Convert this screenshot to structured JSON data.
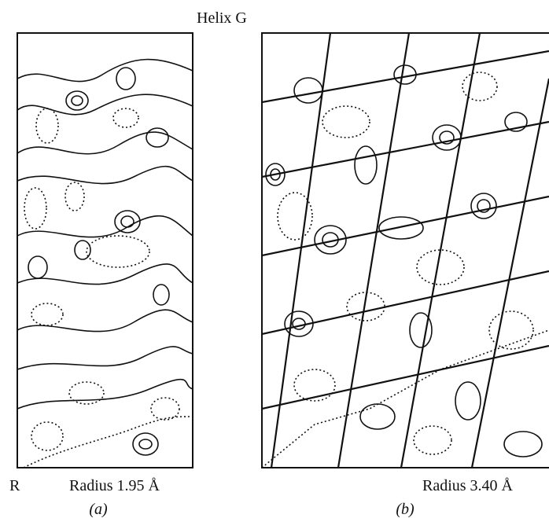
{
  "header": {
    "title": "Helix G"
  },
  "panels": [
    {
      "side_label": "R",
      "label": "Radius 1.95 Å",
      "caption": "(a)"
    },
    {
      "label": "Radius 3.40 Å",
      "caption": "(b)"
    }
  ]
}
